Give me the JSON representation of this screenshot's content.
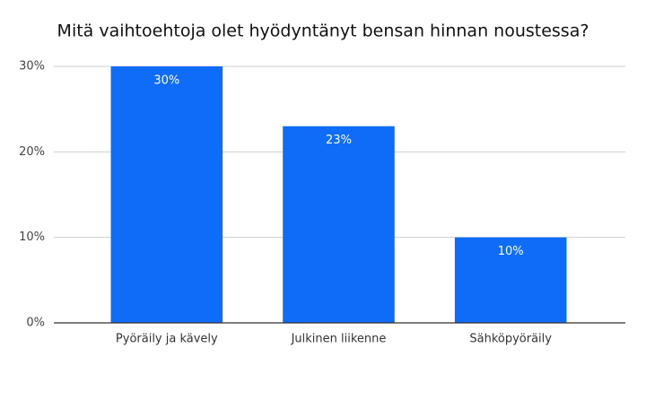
{
  "chart_data": {
    "type": "bar",
    "title": "Mitä vaihtoehtoja olet hyödyntänyt bensan hinnan noustessa?",
    "categories": [
      "Pyöräily ja kävely",
      "Julkinen liikenne",
      "Sähköpyöräily"
    ],
    "values": [
      30,
      23,
      10
    ],
    "value_labels": [
      "30%",
      "23%",
      "10%"
    ],
    "color": "#0f6cf6",
    "ylim": [
      0,
      30
    ],
    "yticks": [
      {
        "value": 0,
        "label": "0%"
      },
      {
        "value": 10,
        "label": "10%"
      },
      {
        "value": 20,
        "label": "20%"
      },
      {
        "value": 30,
        "label": "30%"
      }
    ],
    "grid": true
  }
}
